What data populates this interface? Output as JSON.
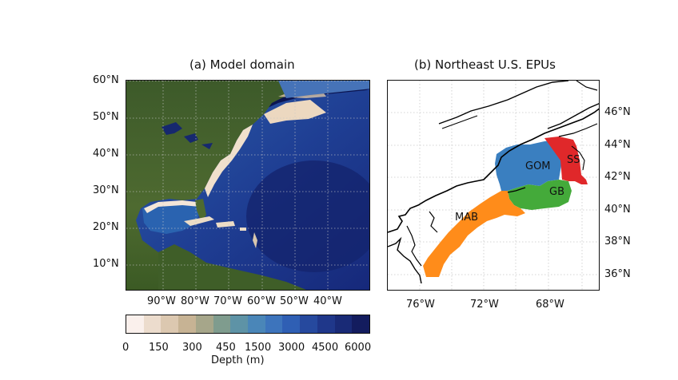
{
  "panel_a": {
    "title": "(a) Model domain",
    "lat_labels": [
      "60°N",
      "50°N",
      "40°N",
      "30°N",
      "20°N",
      "10°N"
    ],
    "lon_labels": [
      "90°W",
      "80°W",
      "70°W",
      "60°W",
      "50°W",
      "40°W"
    ]
  },
  "panel_b": {
    "title": "(b) Northeast U.S. EPUs",
    "lat_labels": [
      "46°N",
      "44°N",
      "42°N",
      "40°N",
      "38°N",
      "36°N"
    ],
    "lon_labels": [
      "76°W",
      "72°W",
      "68°W"
    ],
    "regions": [
      {
        "label": "GOM",
        "color": "#3a7fc0"
      },
      {
        "label": "SS",
        "color": "#e0282a"
      },
      {
        "label": "GB",
        "color": "#44aa3a"
      },
      {
        "label": "MAB",
        "color": "#ff8c1a"
      }
    ]
  },
  "colorbar": {
    "label": "Depth (m)",
    "ticks": [
      "0",
      "150",
      "300",
      "450",
      "1500",
      "3000",
      "4500",
      "6000"
    ],
    "colors": [
      "#faf0ec",
      "#ecdccd",
      "#dcc8b0",
      "#c7b394",
      "#a6a68a",
      "#7f9c8e",
      "#5e93a6",
      "#4a86b8",
      "#3d74bc",
      "#2f5fb4",
      "#26499e",
      "#1f378a",
      "#192a76",
      "#131c5e"
    ]
  }
}
